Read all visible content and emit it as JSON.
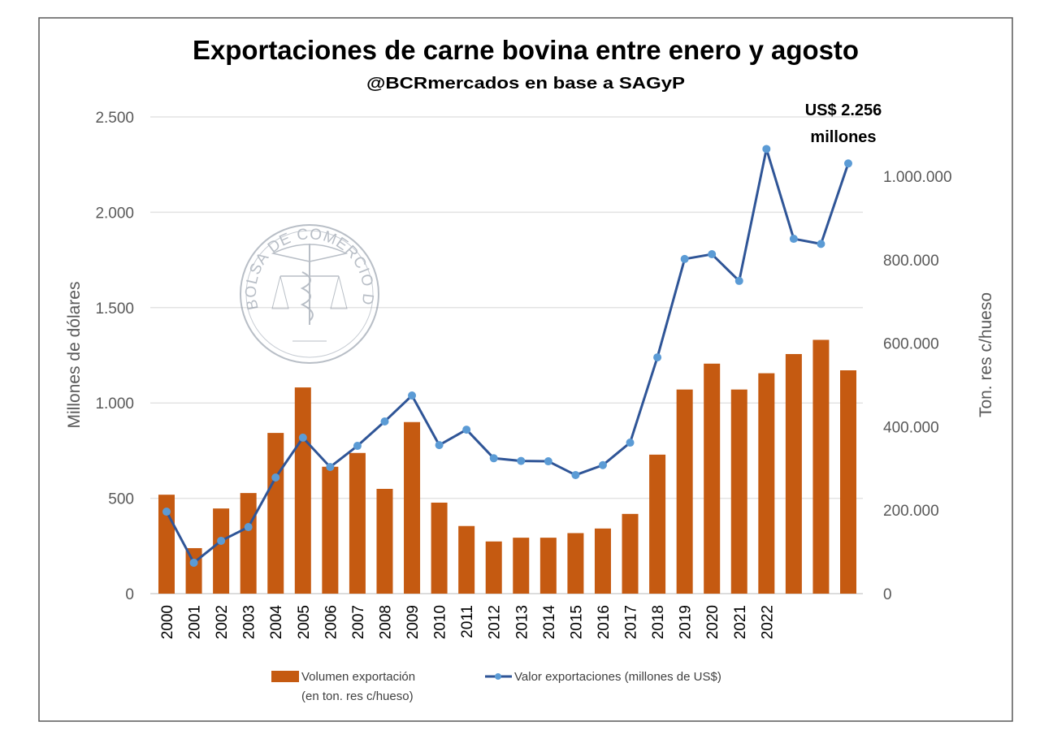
{
  "chart_data": {
    "type": "bar+line",
    "title": "Exportaciones de carne bovina entre enero y agosto",
    "subtitle": "@BCRmercados en base a SAGyP",
    "categories": [
      "2000",
      "2001",
      "2002",
      "2003",
      "2004",
      "2005",
      "2006",
      "2007",
      "2008",
      "2009",
      "2010",
      "2011",
      "2012",
      "2013",
      "2014",
      "2015",
      "2016",
      "2017",
      "2018",
      "2019",
      "2020",
      "2021",
      "2022",
      "",
      "",
      ""
    ],
    "left_axis": {
      "label": "Millones de dólares",
      "range": [
        0,
        2500
      ],
      "ticks": [
        "0",
        "500",
        "1.000",
        "1.500",
        "2.000",
        "2.500"
      ],
      "tick_values": [
        0,
        500,
        1000,
        1500,
        2000,
        2500
      ]
    },
    "right_axis": {
      "label": "Ton. res c/hueso",
      "range": [
        0,
        1143000
      ],
      "ticks": [
        "0",
        "200.000",
        "400.000",
        "600.000",
        "800.000",
        "1.000.000"
      ],
      "tick_values": [
        0,
        200000,
        400000,
        600000,
        800000,
        1000000
      ]
    },
    "grid": true,
    "legend_position": "bottom",
    "series": [
      {
        "name": "Volumen exportación (en ton. res c/hueso)",
        "name_lines": [
          "Volumen exportación",
          "(en ton. res c/hueso)"
        ],
        "type": "bar",
        "axis": "right",
        "color": "#C55A11",
        "values": [
          237000,
          109000,
          204000,
          241000,
          385000,
          494000,
          304000,
          337000,
          251000,
          411000,
          218000,
          162000,
          125000,
          134000,
          134000,
          145000,
          156000,
          191000,
          333000,
          489000,
          551000,
          489000,
          528000,
          574000,
          608000,
          535000
        ]
      },
      {
        "name": "Valor exportaciones (millones de US$)",
        "type": "line",
        "axis": "left",
        "color": "#2F5597",
        "marker_color": "#5B9BD5",
        "values": [
          430,
          162,
          277,
          349,
          609,
          818,
          664,
          775,
          903,
          1039,
          779,
          860,
          710,
          696,
          694,
          622,
          674,
          792,
          1239,
          1755,
          1780,
          1640,
          2332,
          1861,
          1834,
          2256
        ]
      }
    ],
    "annotation": {
      "lines": [
        "US$ 2.256",
        "millones"
      ],
      "target_index": 25
    }
  },
  "watermark": {
    "text": "BOLSA DE COMERCIO DE ROSARIO"
  }
}
